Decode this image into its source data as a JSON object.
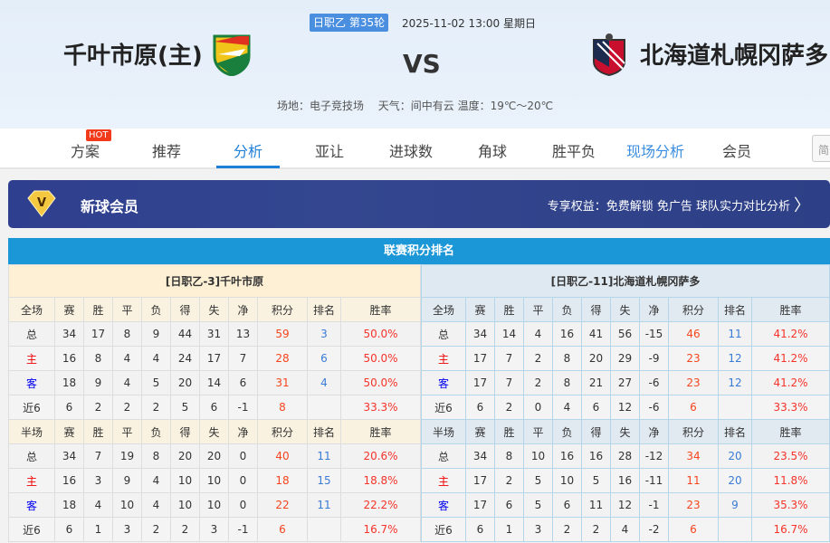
{
  "match": {
    "league_round": "日职乙 第35轮",
    "datetime": "2025-11-02 13:00 星期日",
    "home": "千叶市原(主)",
    "away": "北海道札幌冈萨多",
    "vs": "VS",
    "venue_info": "场地：电子竞技场　 天气：间中有云 温度：19℃～20℃"
  },
  "nav": {
    "items": [
      "方案",
      "推荐",
      "分析",
      "亚让",
      "进球数",
      "角球",
      "胜平负",
      "现场分析",
      "会员"
    ],
    "active": "分析",
    "hot_badge": "HOT",
    "search_stub": "简"
  },
  "banner": {
    "title": "新球会员",
    "perks": "专享权益：免费解锁 免广告 球队实力对比分析"
  },
  "standings": {
    "title": "联赛积分排名",
    "colors": {
      "points": "#f5451f",
      "rank": "#3a7bd5",
      "rate": "#f5332a",
      "accent": "#1b96d6"
    },
    "teams": [
      {
        "name": "[日职乙-3]千叶市原",
        "full_header": [
          "全场",
          "赛",
          "胜",
          "平",
          "负",
          "得",
          "失",
          "净",
          "积分",
          "排名",
          "胜率"
        ],
        "full": [
          [
            "总",
            "34",
            "17",
            "8",
            "9",
            "44",
            "31",
            "13",
            "59",
            "3",
            "50.0%"
          ],
          [
            "主",
            "16",
            "8",
            "4",
            "4",
            "24",
            "17",
            "7",
            "28",
            "6",
            "50.0%"
          ],
          [
            "客",
            "18",
            "9",
            "4",
            "5",
            "20",
            "14",
            "6",
            "31",
            "4",
            "50.0%"
          ],
          [
            "近6",
            "6",
            "2",
            "2",
            "2",
            "5",
            "6",
            "-1",
            "8",
            "",
            "33.3%"
          ]
        ],
        "half_header": [
          "半场",
          "赛",
          "胜",
          "平",
          "负",
          "得",
          "失",
          "净",
          "积分",
          "排名",
          "胜率"
        ],
        "half": [
          [
            "总",
            "34",
            "7",
            "19",
            "8",
            "20",
            "20",
            "0",
            "40",
            "11",
            "20.6%"
          ],
          [
            "主",
            "16",
            "3",
            "9",
            "4",
            "10",
            "10",
            "0",
            "18",
            "15",
            "18.8%"
          ],
          [
            "客",
            "18",
            "4",
            "10",
            "4",
            "10",
            "10",
            "0",
            "22",
            "11",
            "22.2%"
          ],
          [
            "近6",
            "6",
            "1",
            "3",
            "2",
            "2",
            "3",
            "-1",
            "6",
            "",
            "16.7%"
          ]
        ]
      },
      {
        "name": "[日职乙-11]北海道札幌冈萨多",
        "full_header": [
          "全场",
          "赛",
          "胜",
          "平",
          "负",
          "得",
          "失",
          "净",
          "积分",
          "排名",
          "胜率"
        ],
        "full": [
          [
            "总",
            "34",
            "14",
            "4",
            "16",
            "41",
            "56",
            "-15",
            "46",
            "11",
            "41.2%"
          ],
          [
            "主",
            "17",
            "7",
            "2",
            "8",
            "20",
            "29",
            "-9",
            "23",
            "12",
            "41.2%"
          ],
          [
            "客",
            "17",
            "7",
            "2",
            "8",
            "21",
            "27",
            "-6",
            "23",
            "12",
            "41.2%"
          ],
          [
            "近6",
            "6",
            "2",
            "0",
            "4",
            "6",
            "12",
            "-6",
            "6",
            "",
            "33.3%"
          ]
        ],
        "half_header": [
          "半场",
          "赛",
          "胜",
          "平",
          "负",
          "得",
          "失",
          "净",
          "积分",
          "排名",
          "胜率"
        ],
        "half": [
          [
            "总",
            "34",
            "8",
            "10",
            "16",
            "16",
            "28",
            "-12",
            "34",
            "20",
            "23.5%"
          ],
          [
            "主",
            "17",
            "2",
            "5",
            "10",
            "5",
            "16",
            "-11",
            "11",
            "20",
            "11.8%"
          ],
          [
            "客",
            "17",
            "6",
            "5",
            "6",
            "11",
            "12",
            "-1",
            "23",
            "9",
            "35.3%"
          ],
          [
            "近6",
            "6",
            "1",
            "3",
            "2",
            "2",
            "4",
            "-2",
            "6",
            "",
            "16.7%"
          ]
        ]
      }
    ]
  }
}
